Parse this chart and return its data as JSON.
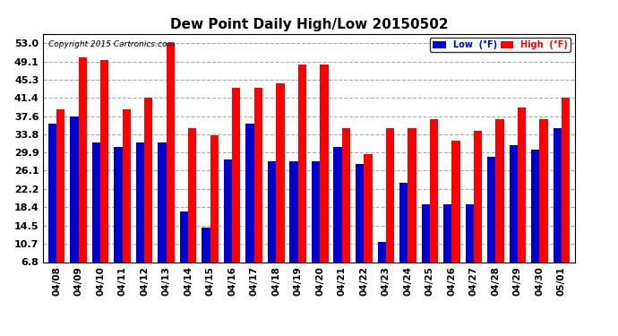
{
  "title": "Dew Point Daily High/Low 20150502",
  "copyright": "Copyright 2015 Cartronics.com",
  "dates": [
    "04/08",
    "04/09",
    "04/10",
    "04/11",
    "04/12",
    "04/13",
    "04/14",
    "04/15",
    "04/16",
    "04/17",
    "04/18",
    "04/19",
    "04/20",
    "04/21",
    "04/22",
    "04/23",
    "04/24",
    "04/25",
    "04/26",
    "04/27",
    "04/28",
    "04/29",
    "04/30",
    "05/01"
  ],
  "high_values": [
    39.0,
    50.0,
    49.5,
    39.0,
    41.5,
    53.0,
    35.0,
    33.5,
    43.5,
    43.5,
    44.5,
    48.5,
    48.5,
    35.0,
    29.5,
    35.0,
    35.0,
    37.0,
    32.5,
    34.5,
    37.0,
    39.5,
    37.0,
    41.5
  ],
  "low_values": [
    36.0,
    37.5,
    32.0,
    31.0,
    32.0,
    32.0,
    17.5,
    14.0,
    28.5,
    36.0,
    28.0,
    28.0,
    28.0,
    31.0,
    27.5,
    11.0,
    23.5,
    19.0,
    19.0,
    19.0,
    29.0,
    31.5,
    30.5,
    35.0
  ],
  "high_color": "#ff0000",
  "low_color": "#0000cc",
  "plot_bg_color": "#ffffff",
  "outer_bg": "#ffffff",
  "yticks": [
    6.8,
    10.7,
    14.5,
    18.4,
    22.2,
    26.1,
    29.9,
    33.8,
    37.6,
    41.4,
    45.3,
    49.1,
    53.0
  ],
  "ymin": 6.8,
  "ymax": 55.0,
  "bar_width": 0.38
}
